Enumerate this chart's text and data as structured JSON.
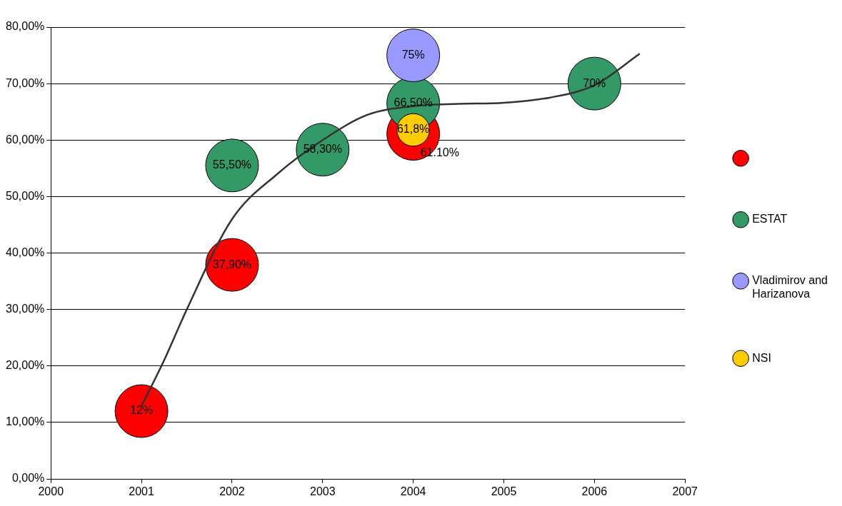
{
  "chart_data": {
    "type": "bubble",
    "xlim": [
      2000,
      2007
    ],
    "xticks": [
      2000,
      2001,
      2002,
      2003,
      2004,
      2005,
      2006,
      2007
    ],
    "ylim": [
      0,
      80
    ],
    "yticks": [
      {
        "value": 0,
        "label": "0,00%"
      },
      {
        "value": 10,
        "label": "10,00%"
      },
      {
        "value": 20,
        "label": "20,00%"
      },
      {
        "value": 30,
        "label": "30,00%"
      },
      {
        "value": 40,
        "label": "40,00%"
      },
      {
        "value": 50,
        "label": "50,00%"
      },
      {
        "value": 60,
        "label": "60,00%"
      },
      {
        "value": 70,
        "label": "70,00%"
      },
      {
        "value": 80,
        "label": "80,00%"
      }
    ],
    "grid": "y",
    "legend": "right",
    "series": [
      {
        "color": "#ff0000",
        "x": [
          2001,
          2002,
          2004
        ],
        "values": [
          12,
          37.9,
          61.1
        ],
        "sizes": [
          1,
          1,
          1
        ],
        "value_labels": [
          "12%",
          "37,90%",
          "61.10%"
        ]
      },
      {
        "name": "ESTAT",
        "color": "#339966",
        "x": [
          2002,
          2003,
          2004,
          2006
        ],
        "values": [
          55.5,
          58.3,
          66.5,
          70
        ],
        "sizes": [
          1,
          1,
          1,
          1
        ],
        "value_labels": [
          "55,50%",
          "58,30%",
          "66,50%",
          "70%"
        ]
      },
      {
        "name": "Vladimirov and Harizanova",
        "color": "#9999ff",
        "x": [
          2004
        ],
        "values": [
          75
        ],
        "sizes": [
          1
        ],
        "value_labels": [
          "75%"
        ]
      },
      {
        "name": "NSI",
        "color": "#ffcc00",
        "x": [
          2004
        ],
        "values": [
          61.8
        ],
        "sizes": [
          0.38
        ],
        "value_labels": [
          "61,8%"
        ]
      },
      {
        "type": "line",
        "color": "#333333",
        "x": [
          2001,
          2001.25,
          2001.5,
          2002,
          2002.5,
          2003,
          2003.5,
          2004,
          2004.5,
          2005,
          2005.5,
          2006,
          2006.5
        ],
        "values": [
          12.9,
          21,
          30,
          46,
          54,
          60,
          64.5,
          66,
          66.4,
          66.6,
          67.5,
          69.7,
          75.3
        ]
      }
    ]
  }
}
